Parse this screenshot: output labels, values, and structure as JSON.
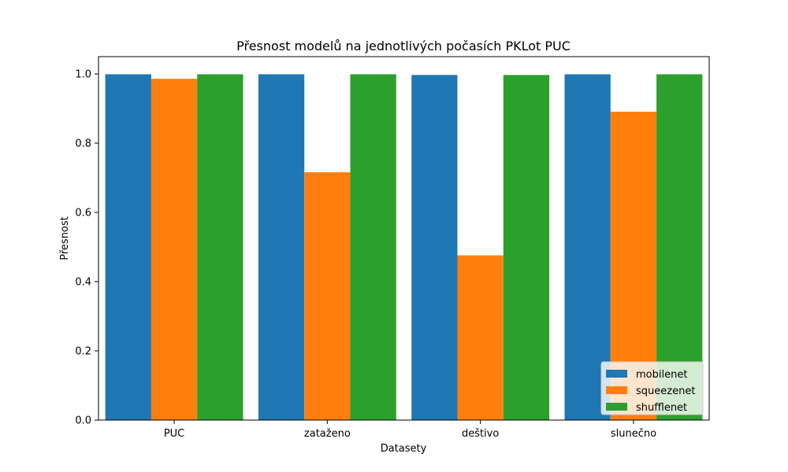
{
  "chart_data": {
    "type": "bar",
    "title": "Přesnost modelů na jednotlivých počasích PKLot PUC",
    "xlabel": "Datasety",
    "ylabel": "Přesnost",
    "categories": [
      "PUC",
      "zataženo",
      "deštivo",
      "slunečno"
    ],
    "series": [
      {
        "name": "mobilenet",
        "color": "#1f77b4",
        "values": [
          0.999,
          0.999,
          0.997,
          0.999
        ]
      },
      {
        "name": "squeezenet",
        "color": "#ff7f0e",
        "values": [
          0.986,
          0.716,
          0.476,
          0.891
        ]
      },
      {
        "name": "shufflenet",
        "color": "#2ca02c",
        "values": [
          0.999,
          0.999,
          0.997,
          0.999
        ]
      }
    ],
    "ylim": [
      0,
      1.05
    ],
    "yticks": [
      "0.0",
      "0.2",
      "0.4",
      "0.6",
      "0.8",
      "1.0"
    ],
    "grid": false,
    "legend_position": "lower-right"
  }
}
